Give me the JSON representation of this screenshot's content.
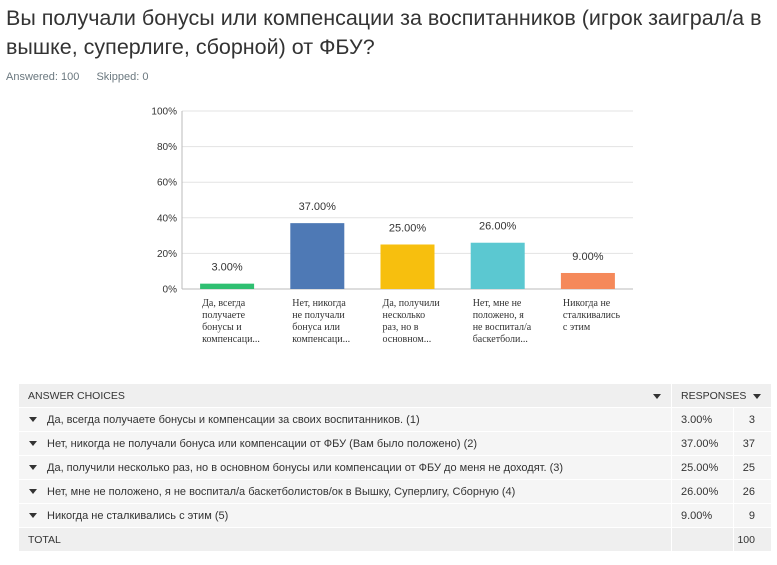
{
  "question": "Вы получали бонусы или компенсации за воспитанников (игрок заиграл/а в вышке, суперлиге, сборной) от ФБУ?",
  "stats": {
    "answered": "Answered: 100",
    "skipped": "Skipped: 0"
  },
  "chart_data": {
    "type": "bar",
    "title": "",
    "xlabel": "",
    "ylabel": "",
    "ylim": [
      0,
      100
    ],
    "yticks": [
      "0%",
      "20%",
      "40%",
      "60%",
      "80%",
      "100%"
    ],
    "categories": [
      [
        "Да, всегда",
        "получаете",
        "бонусы и",
        "компенсаци..."
      ],
      [
        "Нет, никогда",
        "не получали",
        "бонуса или",
        "компенсаци..."
      ],
      [
        "Да, получили",
        "несколько",
        "раз, но в",
        "основном..."
      ],
      [
        "Нет, мне не",
        "положено, я",
        "не воспитал/а",
        "баскетболи..."
      ],
      [
        "Никогда не",
        "сталкивались",
        "с этим"
      ]
    ],
    "values": [
      3,
      37,
      25,
      26,
      9
    ],
    "value_labels": [
      "3.00%",
      "37.00%",
      "25.00%",
      "26.00%",
      "9.00%"
    ],
    "colors": [
      "#2fbf71",
      "#4e79b5",
      "#f7bf0e",
      "#5bc8d1",
      "#f5895a"
    ]
  },
  "table": {
    "header_choices": "ANSWER CHOICES",
    "header_responses": "RESPONSES",
    "rows": [
      {
        "label": "Да, всегда получаете бонусы и компенсации за своих воспитанников. (1)",
        "pct": "3.00%",
        "count": "3"
      },
      {
        "label": "Нет, никогда не получали бонуса или компенсации от ФБУ (Вам было положено) (2)",
        "pct": "37.00%",
        "count": "37"
      },
      {
        "label": "Да, получили несколько раз, но в основном бонусы или компенсации от ФБУ до меня не доходят. (3)",
        "pct": "25.00%",
        "count": "25"
      },
      {
        "label": "Нет, мне не положено, я не воспитал/а баскетболистов/ок в Вышку, Суперлигу, Сборную (4)",
        "pct": "26.00%",
        "count": "26"
      },
      {
        "label": "Никогда не сталкивались с этим (5)",
        "pct": "9.00%",
        "count": "9"
      }
    ],
    "total_label": "TOTAL",
    "total_value": "100"
  }
}
